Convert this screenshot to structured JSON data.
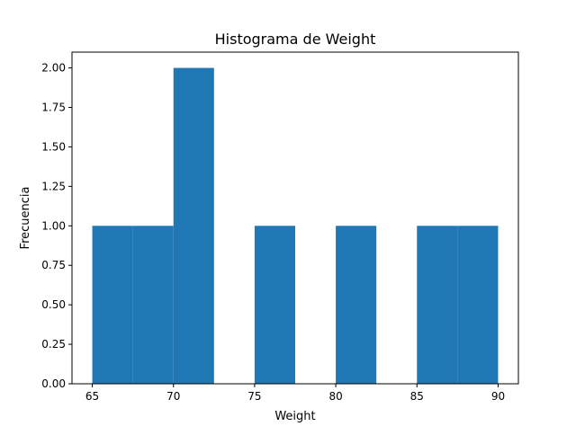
{
  "chart_data": {
    "type": "bar",
    "title": "Histograma de Weight",
    "xlabel": "Weight",
    "ylabel": "Frecuencia",
    "bins": [
      {
        "start": 65.0,
        "end": 67.5,
        "count": 1
      },
      {
        "start": 67.5,
        "end": 70.0,
        "count": 1
      },
      {
        "start": 70.0,
        "end": 72.5,
        "count": 2
      },
      {
        "start": 72.5,
        "end": 75.0,
        "count": 0
      },
      {
        "start": 75.0,
        "end": 77.5,
        "count": 1
      },
      {
        "start": 77.5,
        "end": 80.0,
        "count": 0
      },
      {
        "start": 80.0,
        "end": 82.5,
        "count": 1
      },
      {
        "start": 82.5,
        "end": 85.0,
        "count": 0
      },
      {
        "start": 85.0,
        "end": 87.5,
        "count": 1
      },
      {
        "start": 87.5,
        "end": 90.0,
        "count": 1
      }
    ],
    "xlim": [
      63.75,
      91.25
    ],
    "ylim": [
      0,
      2.1
    ],
    "xticks": [
      {
        "value": 65,
        "label": "65"
      },
      {
        "value": 70,
        "label": "70"
      },
      {
        "value": 75,
        "label": "75"
      },
      {
        "value": 80,
        "label": "80"
      },
      {
        "value": 85,
        "label": "85"
      },
      {
        "value": 90,
        "label": "90"
      }
    ],
    "yticks": [
      {
        "value": 0.0,
        "label": "0.00"
      },
      {
        "value": 0.25,
        "label": "0.25"
      },
      {
        "value": 0.5,
        "label": "0.50"
      },
      {
        "value": 0.75,
        "label": "0.75"
      },
      {
        "value": 1.0,
        "label": "1.00"
      },
      {
        "value": 1.25,
        "label": "1.25"
      },
      {
        "value": 1.5,
        "label": "1.50"
      },
      {
        "value": 1.75,
        "label": "1.75"
      },
      {
        "value": 2.0,
        "label": "2.00"
      }
    ],
    "bar_color": "#1f77b4",
    "grid": false,
    "legend": null
  }
}
